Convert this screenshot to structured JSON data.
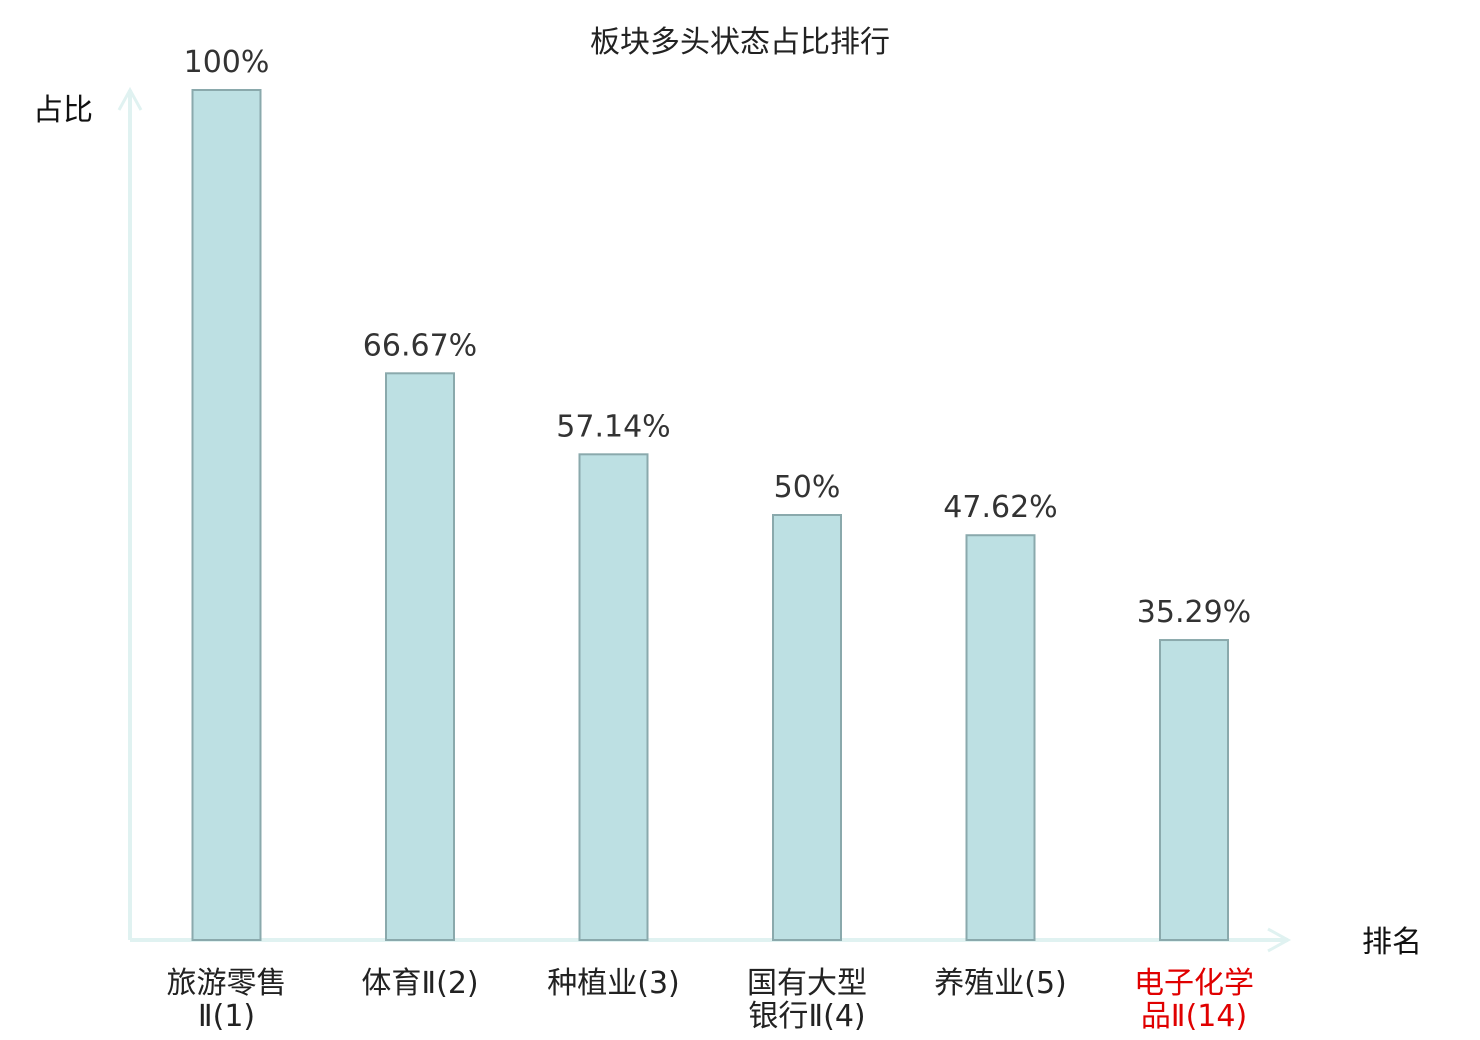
{
  "chart_data": {
    "type": "bar",
    "title": "板块多头状态占比排行",
    "ylabel": "占比",
    "xlabel": "排名",
    "ylim": [
      0,
      100
    ],
    "grid": false,
    "categories": [
      [
        "旅游零售",
        "Ⅱ(1)"
      ],
      [
        "体育Ⅱ(2)"
      ],
      [
        "种植业(3)"
      ],
      [
        "国有大型",
        "银行Ⅱ(4)"
      ],
      [
        "养殖业(5)"
      ],
      [
        "电子化学",
        "品Ⅱ(14)"
      ]
    ],
    "values": [
      100,
      66.67,
      57.14,
      50,
      47.62,
      35.29
    ],
    "value_labels": [
      "100%",
      "66.67%",
      "57.14%",
      "50%",
      "47.62%",
      "35.29%"
    ],
    "highlight_index": 5
  },
  "colors": {
    "bar_fill": "#bde0e3",
    "bar_stroke": "#8aa9ac",
    "axis": "#e0f2f1",
    "label": "#222222",
    "highlight": "#e00000"
  }
}
